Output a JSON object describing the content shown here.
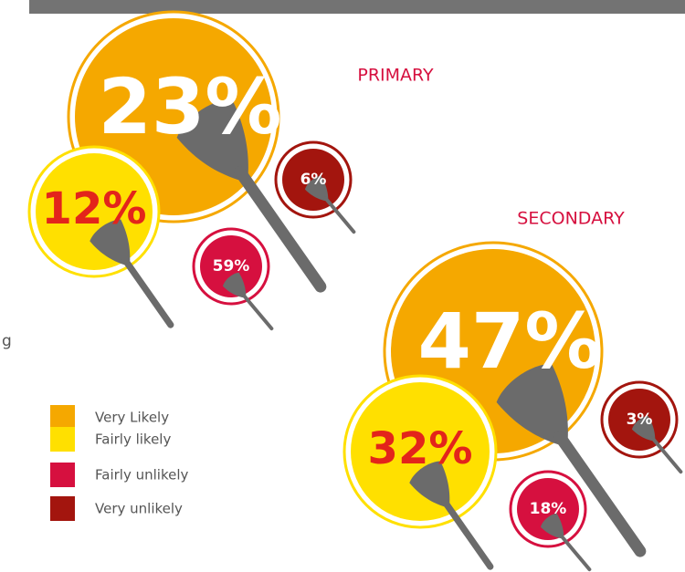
{
  "chart_data": {
    "type": "bubble",
    "series": [
      {
        "name": "Very Likely",
        "color": "#f5a800"
      },
      {
        "name": "Fairly likely",
        "color": "#ffe000"
      },
      {
        "name": "Fairly unlikely",
        "color": "#d6103f"
      },
      {
        "name": "Very unlikely",
        "color": "#a3150e"
      }
    ],
    "groups": [
      {
        "name": "PRIMARY",
        "values": [
          23,
          12,
          59,
          6
        ],
        "value_labels": [
          "23%",
          "12%",
          "59%",
          "6%"
        ]
      },
      {
        "name": "SECONDARY",
        "values": [
          47,
          32,
          18,
          3
        ],
        "value_labels": [
          "47%",
          "32%",
          "18%",
          "3%"
        ]
      }
    ],
    "side_text": "g"
  }
}
